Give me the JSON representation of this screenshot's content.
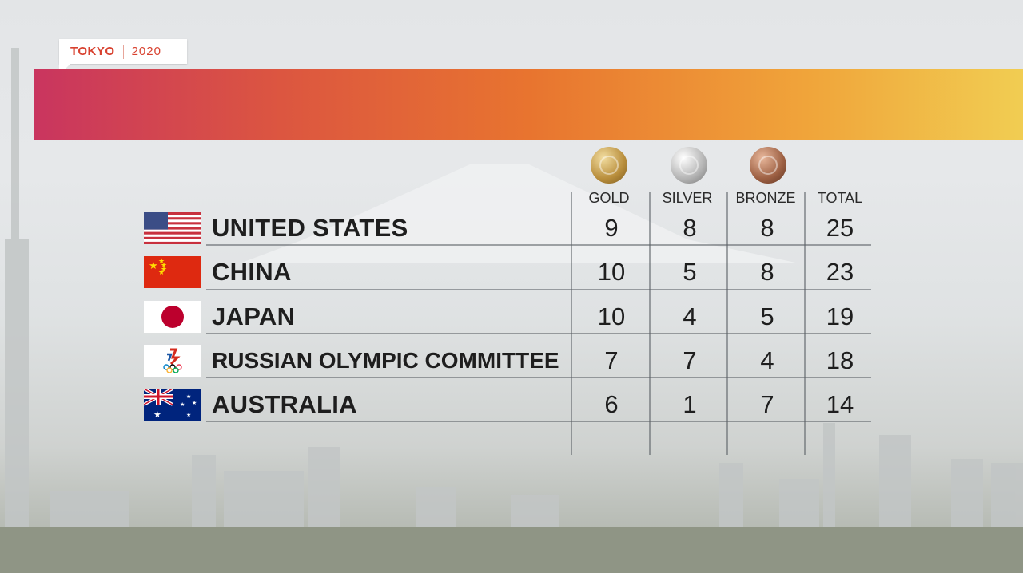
{
  "logo": {
    "city": "TOKYO",
    "year": "2020"
  },
  "columns": {
    "gold": "GOLD",
    "silver": "SILVER",
    "bronze": "BRONZE",
    "total": "TOTAL"
  },
  "rows": [
    {
      "country": "UNITED STATES",
      "gold": "9",
      "silver": "8",
      "bronze": "8",
      "total": "25"
    },
    {
      "country": "CHINA",
      "gold": "10",
      "silver": "5",
      "bronze": "8",
      "total": "23"
    },
    {
      "country": "JAPAN",
      "gold": "10",
      "silver": "4",
      "bronze": "5",
      "total": "19"
    },
    {
      "country": "RUSSIAN OLYMPIC COMMITTEE",
      "gold": "7",
      "silver": "7",
      "bronze": "4",
      "total": "18"
    },
    {
      "country": "AUSTRALIA",
      "gold": "6",
      "silver": "1",
      "bronze": "7",
      "total": "14"
    }
  ],
  "colors": {
    "accent": "#d8412f",
    "banner_start": "#c9355f",
    "banner_end": "#f1cd52"
  }
}
